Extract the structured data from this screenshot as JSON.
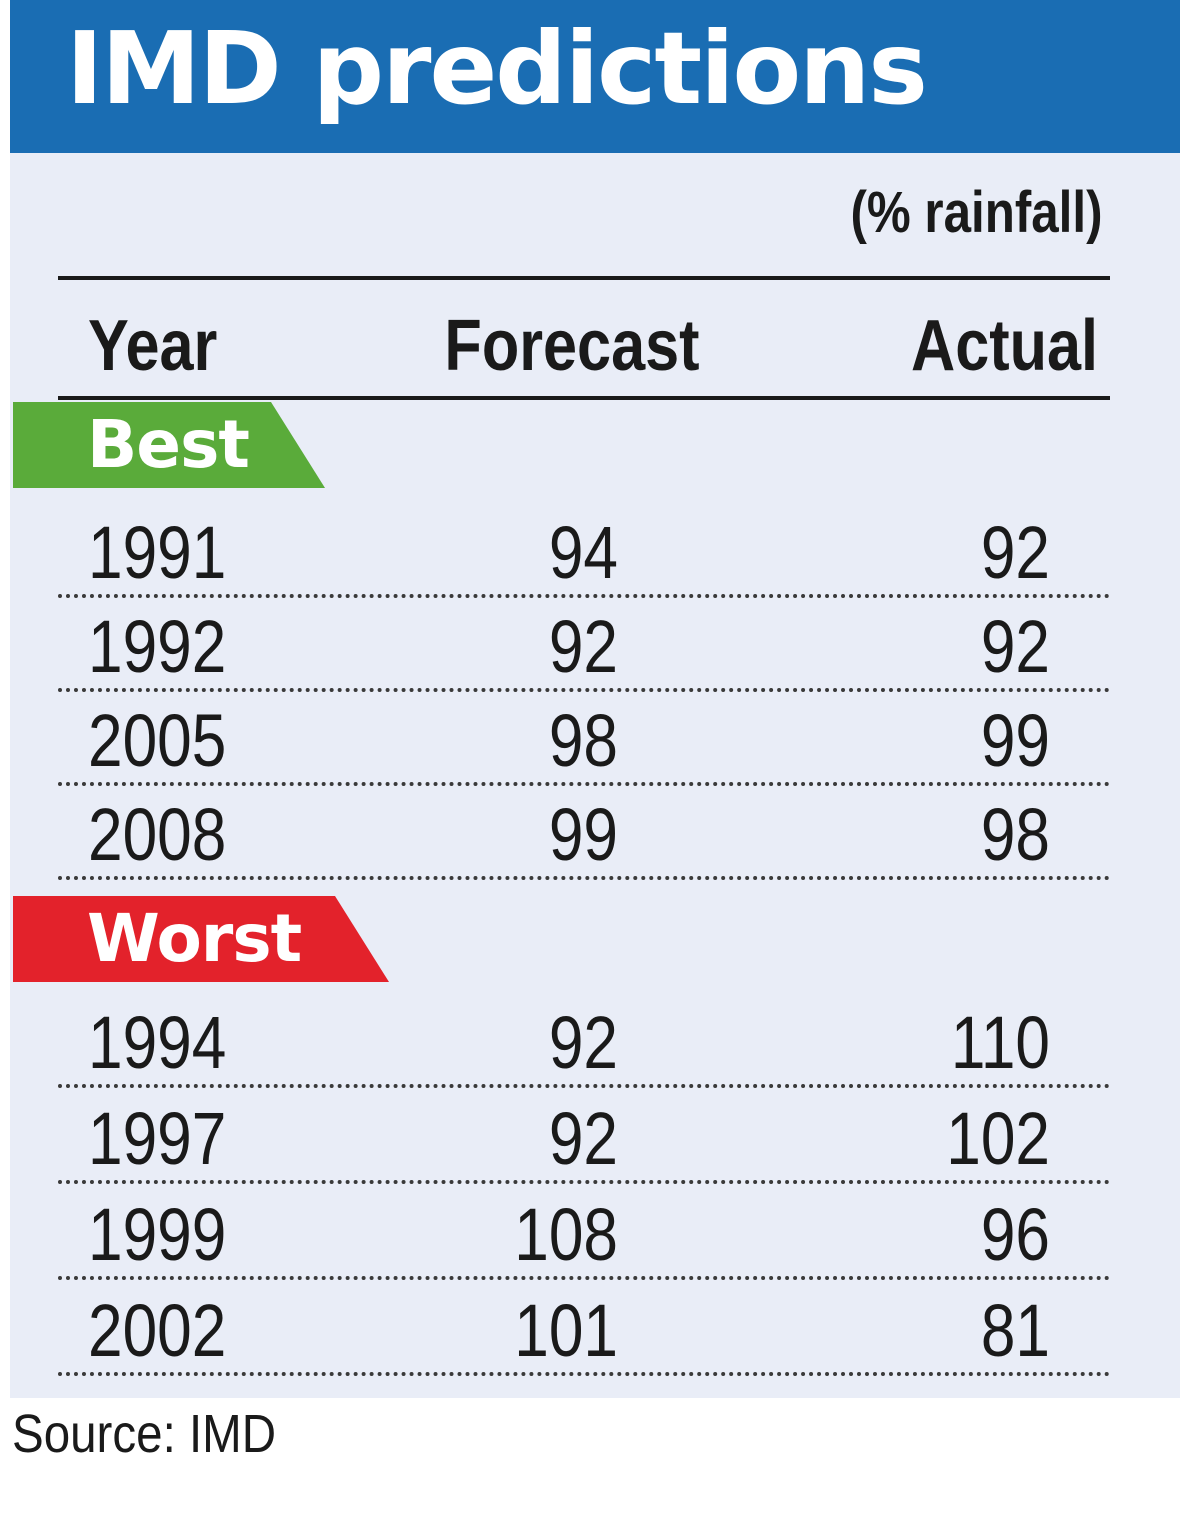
{
  "header": {
    "title": "IMD predictions",
    "unit": "(% rainfall)",
    "title_bar_color": "#1a6db3"
  },
  "columns": [
    "Year",
    "Forecast",
    "Actual"
  ],
  "groups": [
    {
      "label": "Best",
      "color": "#5aab3a",
      "rows": [
        {
          "year": "1991",
          "forecast": "94",
          "actual": "92"
        },
        {
          "year": "1992",
          "forecast": "92",
          "actual": "92"
        },
        {
          "year": "2005",
          "forecast": "98",
          "actual": "99"
        },
        {
          "year": "2008",
          "forecast": "99",
          "actual": "98"
        }
      ]
    },
    {
      "label": "Worst",
      "color": "#e3222b",
      "rows": [
        {
          "year": "1994",
          "forecast": "92",
          "actual": "110"
        },
        {
          "year": "1997",
          "forecast": "92",
          "actual": "102"
        },
        {
          "year": "1999",
          "forecast": "108",
          "actual": "96"
        },
        {
          "year": "2002",
          "forecast": "101",
          "actual": "81"
        }
      ]
    }
  ],
  "source": "Source: IMD",
  "chart_data": {
    "type": "table",
    "title": "IMD predictions",
    "unit": "(% rainfall)",
    "columns": [
      "Year",
      "Forecast",
      "Actual"
    ],
    "groups": [
      {
        "name": "Best",
        "rows": [
          [
            1991,
            94,
            92
          ],
          [
            1992,
            92,
            92
          ],
          [
            2005,
            98,
            99
          ],
          [
            2008,
            99,
            98
          ]
        ]
      },
      {
        "name": "Worst",
        "rows": [
          [
            1994,
            92,
            110
          ],
          [
            1997,
            92,
            102
          ],
          [
            1999,
            108,
            96
          ],
          [
            2002,
            101,
            81
          ]
        ]
      }
    ],
    "source": "Source: IMD"
  }
}
